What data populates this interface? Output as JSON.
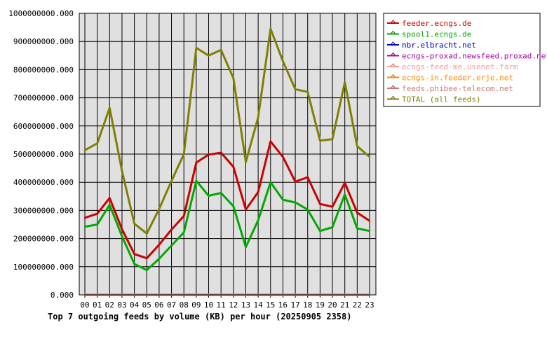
{
  "chart_data": {
    "type": "line",
    "title": "Top 7 outgoing feeds by volume (KB) per hour (20250905 2358)",
    "xlabel": "",
    "ylabel": "",
    "ylim": [
      0,
      1000000000
    ],
    "yticks": [
      {
        "value": 0,
        "label": "0.000"
      },
      {
        "value": 100000000,
        "label": "100000000.000"
      },
      {
        "value": 200000000,
        "label": "200000000.000"
      },
      {
        "value": 300000000,
        "label": "300000000.000"
      },
      {
        "value": 400000000,
        "label": "400000000.000"
      },
      {
        "value": 500000000,
        "label": "500000000.000"
      },
      {
        "value": 600000000,
        "label": "600000000.000"
      },
      {
        "value": 700000000,
        "label": "700000000.000"
      },
      {
        "value": 800000000,
        "label": "800000000.000"
      },
      {
        "value": 900000000,
        "label": "900000000.000"
      },
      {
        "value": 1000000000,
        "label": "1000000000.000"
      }
    ],
    "categories": [
      "00",
      "01",
      "02",
      "03",
      "04",
      "05",
      "06",
      "07",
      "08",
      "09",
      "10",
      "11",
      "12",
      "13",
      "14",
      "15",
      "16",
      "17",
      "18",
      "19",
      "20",
      "21",
      "22",
      "23"
    ],
    "grid": true,
    "legend_position": "top-right",
    "plot_background": "#e0e0e0",
    "series": [
      {
        "name": "feeder.ecngs.de",
        "color": "#cc0000",
        "marker_color": "#990000",
        "values": [
          274000000,
          288000000,
          344000000,
          233000000,
          145000000,
          130000000,
          178000000,
          232000000,
          280000000,
          470000000,
          498000000,
          505000000,
          455000000,
          303000000,
          365000000,
          545000000,
          490000000,
          402000000,
          418000000,
          323000000,
          313000000,
          398000000,
          292000000,
          263000000
        ]
      },
      {
        "name": "spool1.ecngs.de",
        "color": "#00aa00",
        "marker_color": "#006600",
        "values": [
          242000000,
          250000000,
          320000000,
          208000000,
          110000000,
          88000000,
          128000000,
          175000000,
          222000000,
          405000000,
          352000000,
          362000000,
          315000000,
          170000000,
          265000000,
          400000000,
          338000000,
          328000000,
          303000000,
          227000000,
          240000000,
          357000000,
          236000000,
          227000000
        ]
      },
      {
        "name": "nbr.elbracht.net",
        "color": "#0000cc",
        "marker_color": "#000088",
        "values": [
          0,
          0,
          0,
          0,
          0,
          0,
          0,
          0,
          0,
          0,
          0,
          0,
          0,
          0,
          0,
          0,
          0,
          0,
          0,
          0,
          0,
          0,
          0,
          0
        ]
      },
      {
        "name": "ecngs-proxad.newsfeed.proxad.net",
        "color": "#aa00aa",
        "marker_color": "#660066",
        "values": [
          0,
          0,
          0,
          0,
          0,
          0,
          0,
          0,
          0,
          0,
          0,
          0,
          0,
          0,
          0,
          0,
          0,
          0,
          0,
          0,
          0,
          0,
          0,
          0
        ]
      },
      {
        "name": "ecngs-feed-me.usenet.farm",
        "color": "#ff9999",
        "marker_color": "#cc6666",
        "values": [
          1000000,
          1000000,
          1000000,
          1000000,
          1000000,
          1000000,
          1000000,
          1000000,
          1000000,
          1000000,
          1000000,
          1000000,
          1000000,
          1000000,
          1000000,
          1000000,
          1000000,
          1000000,
          1000000,
          1000000,
          1000000,
          1000000,
          1000000,
          1000000
        ]
      },
      {
        "name": "ecngs-in.feeder.erje.net",
        "color": "#ff8800",
        "marker_color": "#cc6600",
        "values": [
          0,
          0,
          0,
          0,
          0,
          0,
          0,
          0,
          0,
          0,
          0,
          0,
          0,
          0,
          0,
          0,
          0,
          0,
          0,
          0,
          0,
          0,
          0,
          0
        ]
      },
      {
        "name": "feeds.phibee-telecom.net",
        "color": "#cc7777",
        "marker_color": "#aa5555",
        "values": [
          0,
          0,
          0,
          0,
          0,
          0,
          0,
          0,
          0,
          0,
          0,
          0,
          0,
          0,
          0,
          0,
          0,
          0,
          0,
          0,
          0,
          0,
          0,
          0
        ]
      },
      {
        "name": "TOTAL (all feeds)",
        "color": "#808000",
        "marker_color": "#555500",
        "values": [
          514000000,
          538000000,
          664000000,
          440000000,
          253000000,
          218000000,
          305000000,
          405000000,
          500000000,
          877000000,
          850000000,
          870000000,
          770000000,
          472000000,
          630000000,
          945000000,
          830000000,
          730000000,
          721000000,
          548000000,
          553000000,
          755000000,
          528000000,
          490000000
        ]
      }
    ]
  }
}
